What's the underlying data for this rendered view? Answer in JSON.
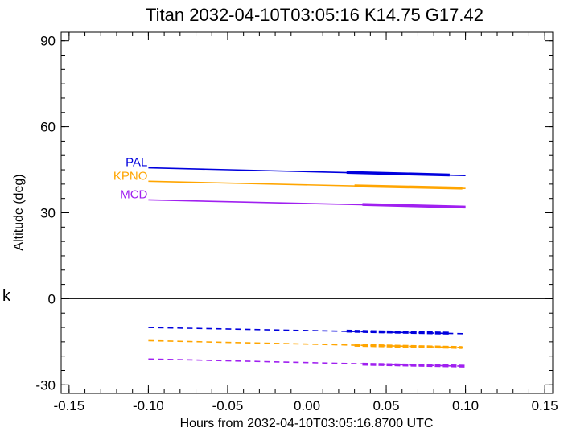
{
  "side_text": "k",
  "chart_data": {
    "type": "line",
    "title": "Titan 2032-04-10T03:05:16  K14.75  G17.42",
    "xlabel": "Hours from 2032-04-10T03:05:16.8700 UTC",
    "ylabel": "Altitude (deg)",
    "xlim": [
      -0.155,
      0.155
    ],
    "ylim": [
      -33,
      93
    ],
    "xticks": [
      -0.15,
      -0.1,
      -0.05,
      0.0,
      0.05,
      0.1,
      0.15
    ],
    "xtick_labels": [
      "-0.15",
      "-0.10",
      "-0.05",
      "0.00",
      "0.05",
      "0.10",
      "0.15"
    ],
    "yticks": [
      -30,
      0,
      30,
      60,
      90
    ],
    "ytick_labels": [
      "-30",
      "0",
      "30",
      "60",
      "90"
    ],
    "grid": false,
    "reference_line_y": 0,
    "series": [
      {
        "name": "PAL",
        "color": "#0000dd",
        "altitude": {
          "x": [
            -0.1,
            0.1
          ],
          "y": [
            45.7,
            43.0
          ]
        },
        "altitude_bold": {
          "x": [
            0.025,
            0.09
          ],
          "y": [
            44.1,
            43.2
          ]
        },
        "dashed": {
          "x": [
            -0.1,
            0.1
          ],
          "y": [
            -10.0,
            -12.2
          ]
        },
        "dashed_bold": {
          "x": [
            0.025,
            0.09
          ],
          "y": [
            -11.3,
            -12.0
          ]
        }
      },
      {
        "name": "KPNO",
        "color": "#ffa500",
        "altitude": {
          "x": [
            -0.1,
            0.1
          ],
          "y": [
            41.0,
            38.5
          ]
        },
        "altitude_bold": {
          "x": [
            0.03,
            0.098
          ],
          "y": [
            39.4,
            38.6
          ]
        },
        "dashed": {
          "x": [
            -0.1,
            0.1
          ],
          "y": [
            -14.6,
            -17.0
          ]
        },
        "dashed_bold": {
          "x": [
            0.03,
            0.098
          ],
          "y": [
            -16.2,
            -17.0
          ]
        }
      },
      {
        "name": "MCD",
        "color": "#a020f0",
        "altitude": {
          "x": [
            -0.1,
            0.1
          ],
          "y": [
            34.5,
            32.0
          ]
        },
        "altitude_bold": {
          "x": [
            0.035,
            0.1
          ],
          "y": [
            32.9,
            32.0
          ]
        },
        "dashed": {
          "x": [
            -0.1,
            0.1
          ],
          "y": [
            -21.0,
            -23.5
          ]
        },
        "dashed_bold": {
          "x": [
            0.035,
            0.1
          ],
          "y": [
            -22.8,
            -23.5
          ]
        }
      }
    ]
  }
}
